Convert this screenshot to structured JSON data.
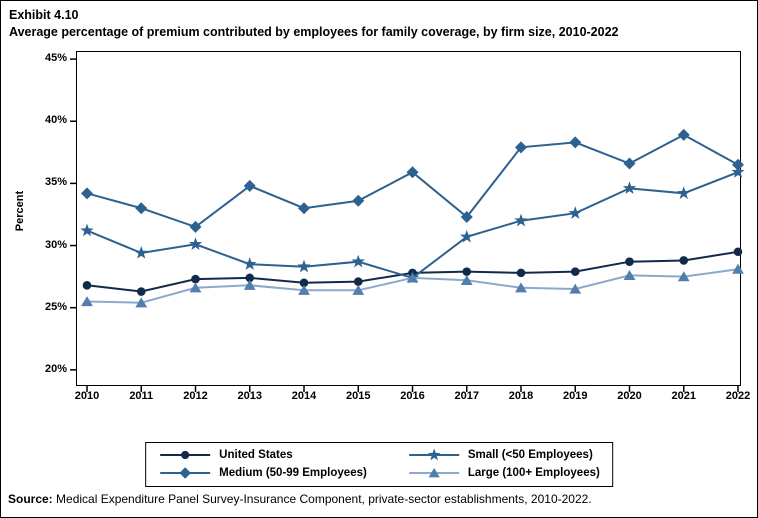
{
  "title": {
    "exhibit": "Exhibit 4.10",
    "line2": "Average percentage of premium contributed by employees for family coverage, by firm size, 2010-2022"
  },
  "source": {
    "label": "Source:",
    "text": " Medical Expenditure Panel Survey-Insurance Component, private-sector establishments, 2010-2022."
  },
  "colors": {
    "frame": "#000000",
    "united_states": "#12294a",
    "medium_firms": "#2d618f",
    "small_firms": "#2d618f",
    "large_firms_marker": "#527eac",
    "large_firms_line": "#8ca9cb"
  },
  "chart_data": {
    "type": "line",
    "title": "Average percentage of premium contributed by employees for family coverage, by firm size, 2010-2022",
    "xlabel": "",
    "ylabel": "Percent",
    "x": [
      "2010",
      "2011",
      "2012",
      "2013",
      "2014",
      "2015",
      "2016",
      "2017",
      "2018",
      "2019",
      "2020",
      "2021",
      "2022"
    ],
    "yticks": [
      20,
      25,
      30,
      35,
      40,
      45
    ],
    "ytick_suffix": "%",
    "ylim": [
      18.7,
      45.65
    ],
    "grid": false,
    "legend_position": "bottom-boxed",
    "series": [
      {
        "name": "United States",
        "marker": "circle",
        "color": "#12294a",
        "line_color": "#12294a",
        "values": [
          26.8,
          26.3,
          27.3,
          27.4,
          27.0,
          27.1,
          27.8,
          27.9,
          27.8,
          27.9,
          28.7,
          28.8,
          29.5
        ]
      },
      {
        "name": "Medium (50-99 Employees)",
        "marker": "diamond",
        "color": "#2d618f",
        "line_color": "#2d618f",
        "values": [
          34.2,
          33.0,
          31.5,
          34.8,
          33.0,
          33.6,
          35.9,
          32.3,
          37.9,
          38.3,
          36.6,
          38.9,
          36.5
        ]
      },
      {
        "name": "Small (<50 Employees)",
        "marker": "star",
        "color": "#2d618f",
        "line_color": "#2d618f",
        "values": [
          31.2,
          29.4,
          30.1,
          28.5,
          28.3,
          28.7,
          27.4,
          30.7,
          32.0,
          32.6,
          34.6,
          34.2,
          35.9
        ]
      },
      {
        "name": "Large (100+ Employees)",
        "marker": "triangle",
        "color": "#527eac",
        "line_color": "#8ca9cb",
        "values": [
          25.5,
          25.4,
          26.6,
          26.8,
          26.4,
          26.4,
          27.4,
          27.2,
          26.6,
          26.5,
          27.6,
          27.5,
          28.1
        ]
      }
    ]
  }
}
